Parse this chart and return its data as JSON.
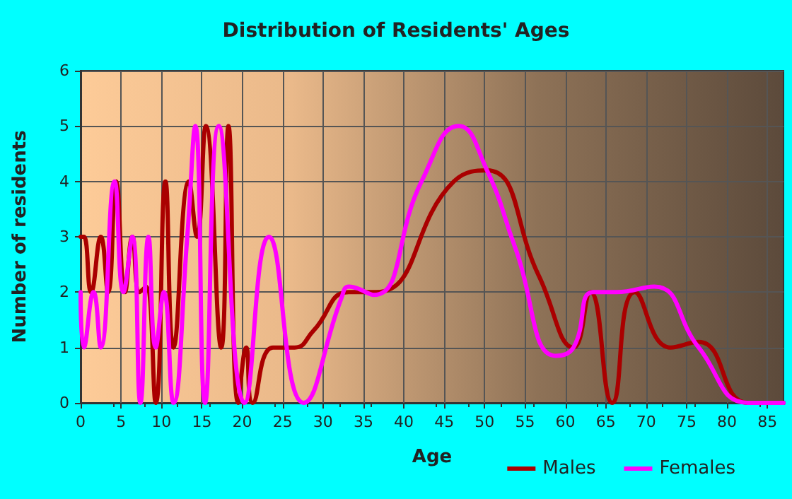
{
  "chart_data": {
    "type": "line",
    "title": "Distribution of Residents' Ages",
    "xlabel": "Age",
    "ylabel": "Number of residents",
    "series": [
      {
        "name": "Males",
        "color": "#aa0000",
        "x": [
          0,
          0.4,
          1.3,
          2.5,
          3.4,
          4.4,
          5.5,
          6.4,
          7.3,
          8.1,
          9.3,
          10.5,
          11.5,
          13.4,
          14.4,
          15.5,
          17.4,
          18.3,
          19.5,
          20.5,
          21.3,
          23.8,
          26.5,
          28.8,
          33.2,
          36.6,
          46.2,
          50.3,
          56.7,
          61,
          63.1,
          65.8,
          68.6,
          73,
          76.5,
          82.6,
          87
        ],
        "values": [
          3,
          3,
          2,
          3,
          2,
          4,
          2,
          3,
          2,
          2.1,
          0,
          4,
          1,
          4,
          3,
          5,
          1,
          5,
          0,
          1,
          0,
          1,
          1,
          1.3,
          2,
          2,
          4,
          4.2,
          2.3,
          1,
          2,
          0,
          2,
          1,
          1.1,
          0,
          0
        ]
      },
      {
        "name": "Females",
        "color": "#ff00ff",
        "x": [
          0,
          0.4,
          1.6,
          2.5,
          4.2,
          5.3,
          6.4,
          7.4,
          8.4,
          9.3,
          10.3,
          11.5,
          13.2,
          14.2,
          15.4,
          17.1,
          20.3,
          23.3,
          27.6,
          32.3,
          33.2,
          36.3,
          42.2,
          46.8,
          50.3,
          53.8,
          58.8,
          61,
          63.4,
          66.3,
          71,
          76.5,
          82.6,
          87
        ],
        "values": [
          2,
          1,
          2,
          1,
          4,
          2,
          3,
          0,
          3,
          1,
          2,
          0,
          3,
          5,
          0,
          5,
          0,
          3,
          0,
          1.9,
          2.1,
          1.95,
          4,
          5,
          4.2,
          2.8,
          0.85,
          1,
          2,
          2,
          2.1,
          1,
          0,
          0
        ]
      }
    ],
    "xlim": [
      0,
      87
    ],
    "xticks": [
      0,
      5,
      10,
      15,
      20,
      25,
      30,
      35,
      40,
      45,
      50,
      55,
      60,
      65,
      70,
      75,
      80,
      85
    ],
    "ylim": [
      0,
      6
    ],
    "yticks": [
      0,
      1,
      2,
      3,
      4,
      5,
      6
    ],
    "grid": true,
    "legend": "bottom right",
    "marker": "none",
    "line_style": "solid"
  }
}
